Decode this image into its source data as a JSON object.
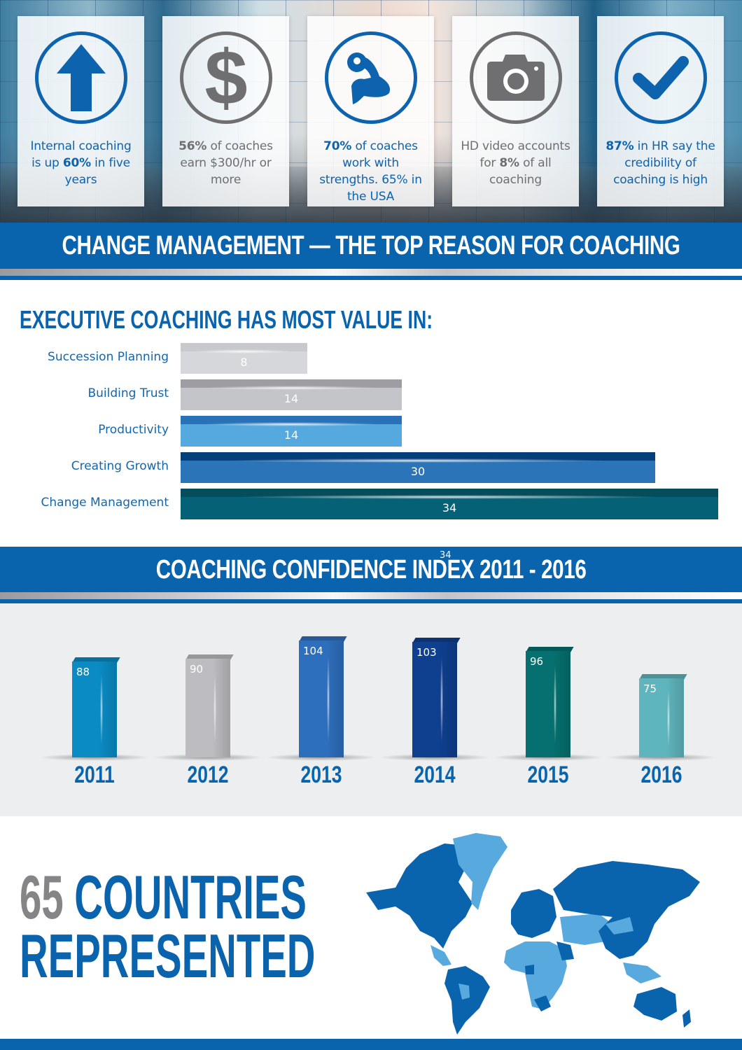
{
  "hero": {
    "cards": [
      {
        "icon": "arrow-up-icon",
        "color": "blue",
        "parts": [
          {
            "t": "Internal coaching is up ",
            "b": false
          },
          {
            "t": "60%",
            "b": true
          },
          {
            "t": " in five years",
            "b": false
          }
        ]
      },
      {
        "icon": "dollar-icon",
        "color": "gray",
        "parts": [
          {
            "t": "56%",
            "b": true
          },
          {
            "t": " of coaches earn $300/hr or more",
            "b": false
          }
        ]
      },
      {
        "icon": "flexed-arm-icon",
        "color": "blue",
        "parts": [
          {
            "t": "70%",
            "b": true
          },
          {
            "t": " of coaches work with strengths. 65% in the USA",
            "b": false
          }
        ]
      },
      {
        "icon": "camera-icon",
        "color": "gray",
        "parts": [
          {
            "t": "HD video accounts for ",
            "b": false
          },
          {
            "t": "8%",
            "b": true
          },
          {
            "t": " of all coaching",
            "b": false
          }
        ]
      },
      {
        "icon": "checkmark-icon",
        "color": "blue",
        "parts": [
          {
            "t": "87%",
            "b": true
          },
          {
            "t": " in HR say the credibility of coaching is high",
            "b": false
          }
        ]
      }
    ]
  },
  "banner1": {
    "title": "CHANGE MANAGEMENT — THE TOP REASON FOR COACHING"
  },
  "banner2": {
    "title": "COACHING CONFIDENCE INDEX 2011 - 2016",
    "stray_label": "34"
  },
  "countries": {
    "number": "65",
    "line1_rest": " COUNTRIES",
    "line2": "REPRESENTED"
  },
  "colors": {
    "brand_blue": "#0a63ad",
    "gray": "#858587",
    "light_blue": "#58a9dd",
    "panel_gray": "#eceef0"
  },
  "chart_data": [
    {
      "type": "bar",
      "orientation": "horizontal",
      "title": "EXECUTIVE COACHING HAS MOST VALUE IN:",
      "categories": [
        "Succession Planning",
        "Building Trust",
        "Productivity",
        "Creating Growth",
        "Change Management"
      ],
      "values": [
        8,
        14,
        14,
        30,
        34
      ],
      "bar_colors": [
        {
          "cap": "#c8c9cd",
          "body": "#d6d7da"
        },
        {
          "cap": "#9e9da3",
          "body": "#c4c5c9"
        },
        {
          "cap": "#2a72b7",
          "body": "#55a9de"
        },
        {
          "cap": "#053f7a",
          "body": "#2b74b8"
        },
        {
          "cap": "#064d5b",
          "body": "#046176"
        }
      ],
      "xlabel": "",
      "ylabel": "",
      "grid": false
    },
    {
      "type": "bar",
      "orientation": "vertical",
      "style": "3d-columns",
      "title": "COACHING CONFIDENCE INDEX 2011 - 2016",
      "categories": [
        "2011",
        "2012",
        "2013",
        "2014",
        "2015",
        "2016"
      ],
      "values": [
        88,
        90,
        104,
        103,
        96,
        75
      ],
      "bar_colors": [
        "#0a8bc4",
        "#bdbdc1",
        "#2e6fbd",
        "#0f3f8f",
        "#05706f",
        "#5fb5bd"
      ],
      "xlabel": "",
      "ylabel": "",
      "grid": false
    }
  ]
}
